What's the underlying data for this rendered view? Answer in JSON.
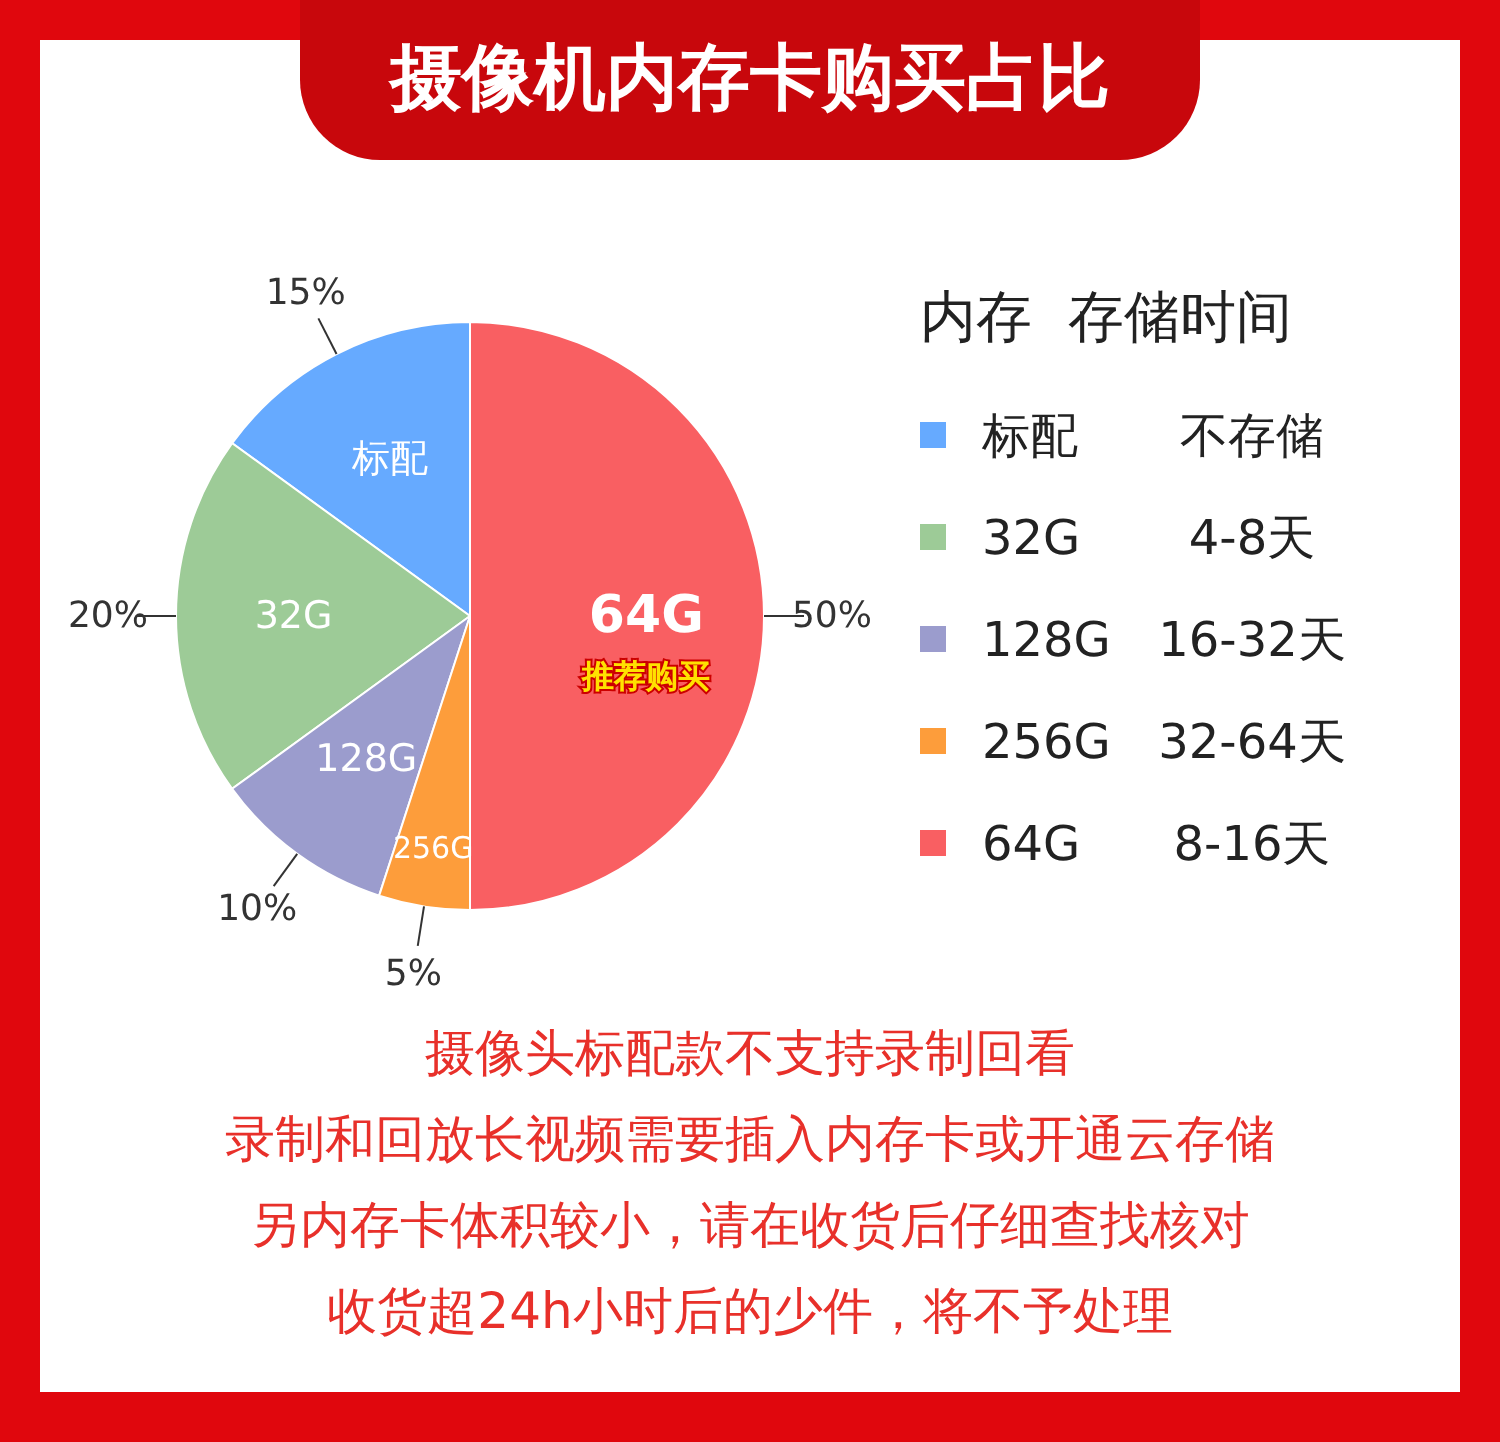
{
  "chart_data": {
    "type": "pie",
    "title": "摄像机内存卡购买占比",
    "legend_title": "内存  存储时间",
    "legend": "right",
    "categories": [
      "标配",
      "32G",
      "128G",
      "256G",
      "64G"
    ],
    "values": [
      15,
      20,
      10,
      5,
      50
    ],
    "value_labels": [
      "15%",
      "20%",
      "10%",
      "5%",
      "50%"
    ],
    "colors": [
      "#66aaff",
      "#9dcb97",
      "#9b9ccd",
      "#fd9d3b",
      "#f95f62"
    ],
    "annotations": [
      {
        "text": "不存储",
        "x": "标配"
      },
      {
        "text": "4-8天",
        "x": "32G"
      },
      {
        "text": "8-16天",
        "x": "64G"
      },
      {
        "text": "16-32天",
        "x": "128G"
      },
      {
        "text": "32-64天",
        "x": "256G"
      },
      {
        "text": "推荐购买",
        "x": "64G"
      },
      "摄像头标配款不支持录制回看",
      "录制和回放长视频需要插入内存卡或开通云存储",
      "另内存卡体积较小，请在收货后仔细查找核对",
      "收货超24h小时后的少件，将不予处理"
    ]
  }
}
